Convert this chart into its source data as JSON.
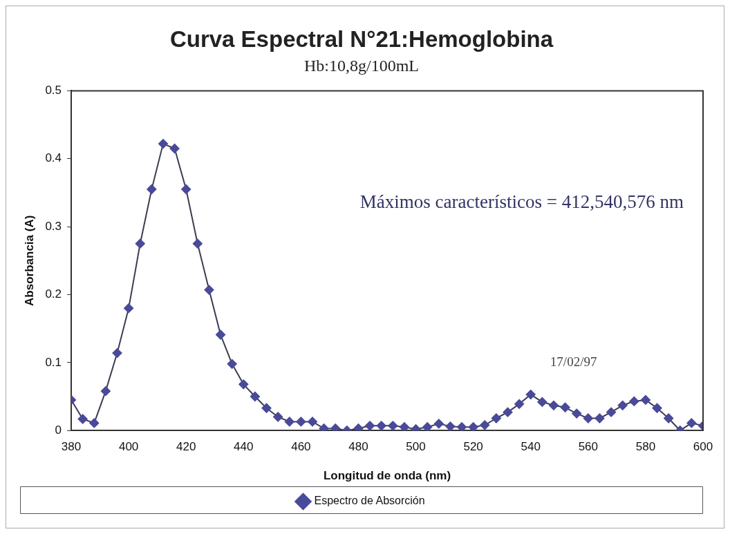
{
  "chart_data": {
    "type": "line",
    "title": "Curva Espectral N°21:Hemoglobina",
    "subtitle": "Hb:10,8g/100mL",
    "xlabel": "Longitud de onda (nm)",
    "ylabel": "Absorbancia (A)",
    "x": [
      380,
      384,
      388,
      392,
      396,
      400,
      404,
      408,
      412,
      416,
      420,
      424,
      428,
      432,
      436,
      440,
      444,
      448,
      452,
      456,
      460,
      464,
      468,
      472,
      476,
      480,
      484,
      488,
      492,
      496,
      500,
      504,
      508,
      512,
      516,
      520,
      524,
      528,
      532,
      536,
      540,
      544,
      548,
      552,
      556,
      560,
      564,
      568,
      572,
      576,
      580,
      584,
      588,
      592,
      596,
      600
    ],
    "series": [
      {
        "name": "Espectro de Absorción",
        "color": "#4a4a9a",
        "values": [
          0.045,
          0.017,
          0.011,
          0.058,
          0.114,
          0.18,
          0.275,
          0.355,
          0.422,
          0.415,
          0.355,
          0.275,
          0.207,
          0.141,
          0.098,
          0.068,
          0.05,
          0.033,
          0.02,
          0.013,
          0.013,
          0.013,
          0.003,
          0.003,
          0.0,
          0.003,
          0.007,
          0.007,
          0.007,
          0.005,
          0.002,
          0.005,
          0.01,
          0.006,
          0.005,
          0.005,
          0.008,
          0.018,
          0.027,
          0.039,
          0.053,
          0.042,
          0.037,
          0.034,
          0.025,
          0.018,
          0.018,
          0.027,
          0.037,
          0.043,
          0.045,
          0.033,
          0.018,
          0.0,
          0.011,
          0.007
        ]
      }
    ],
    "xlim": [
      380,
      600
    ],
    "xticks": [
      380,
      400,
      420,
      440,
      460,
      480,
      500,
      520,
      540,
      560,
      580,
      600
    ],
    "ylim": [
      0,
      0.5
    ],
    "yticks": [
      0,
      0.1,
      0.2,
      0.3,
      0.4,
      0.5
    ],
    "annotations": [
      "Máximos característicos = 412,540,576 nm",
      "17/02/97"
    ],
    "legend": "bottom",
    "marker": "diamond",
    "line_style": "solid",
    "grid": false
  }
}
